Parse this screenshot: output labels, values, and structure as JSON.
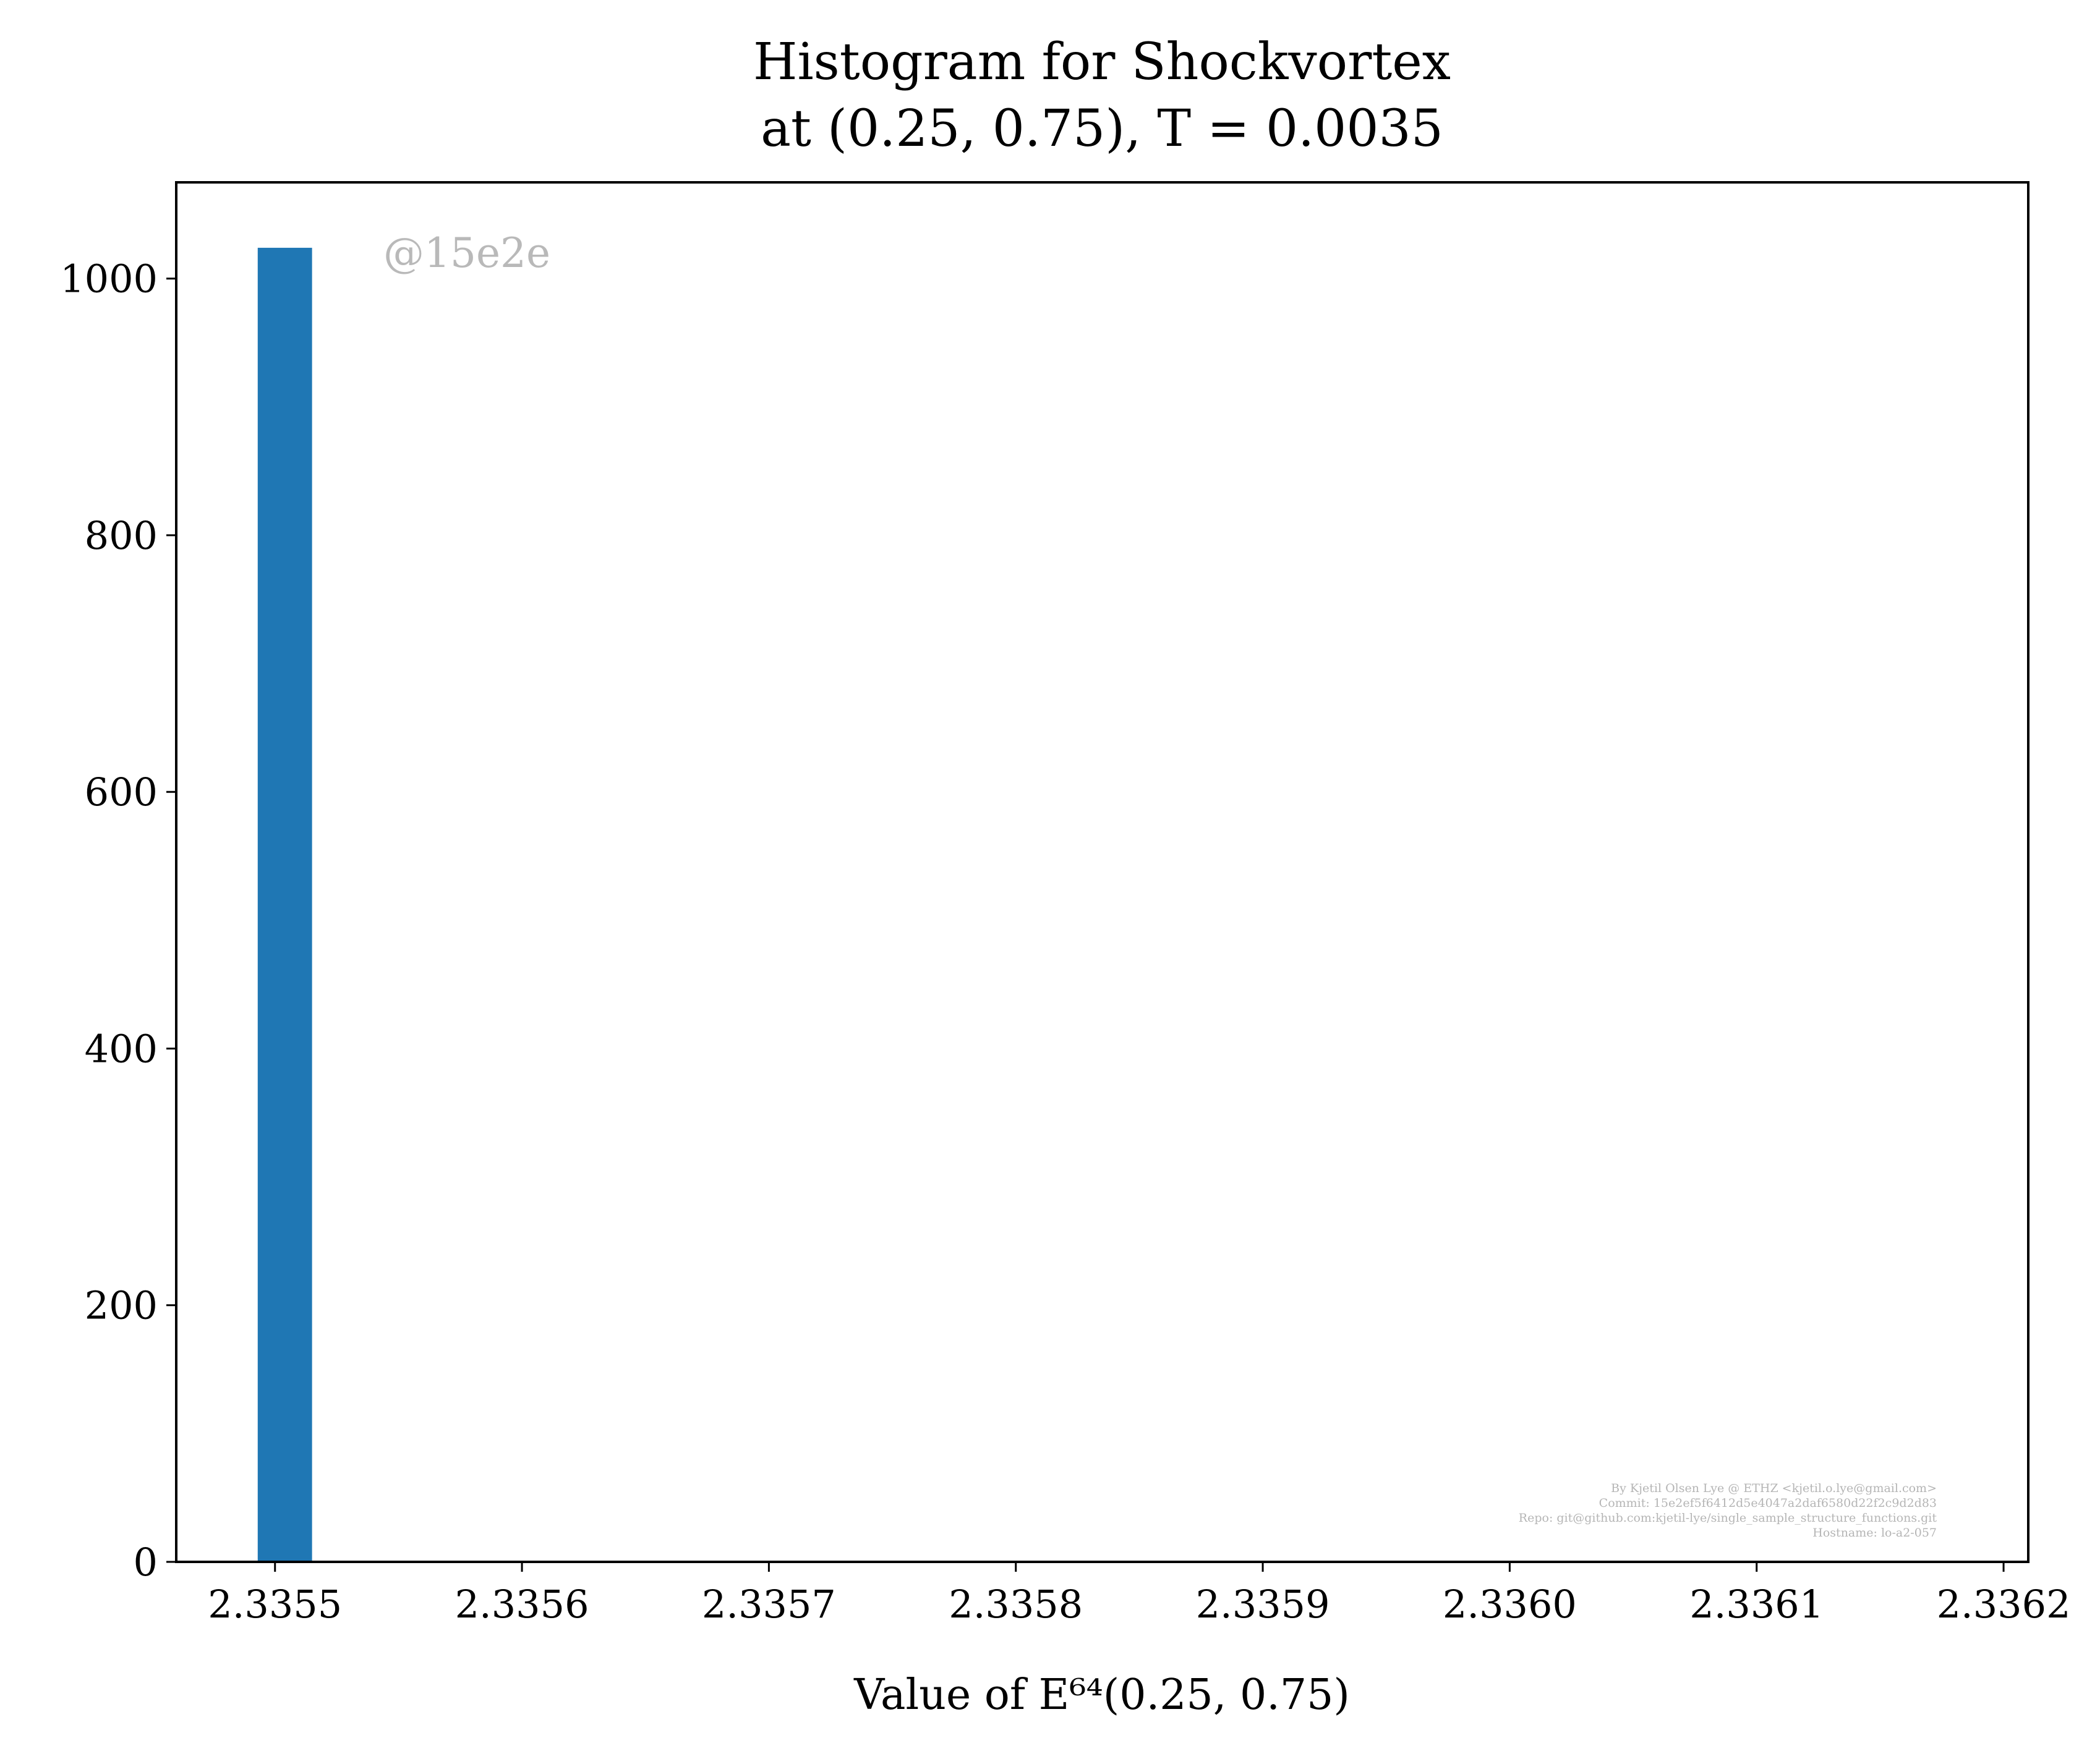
{
  "chart_data": {
    "type": "bar",
    "title_line1": "Histogram for Shockvortex",
    "title_line2": "at (0.25, 0.75), T = 0.0035",
    "xlabel": "Value of E⁶⁴(0.25, 0.75)",
    "ylabel": "",
    "xlim": [
      2.33546,
      2.33621
    ],
    "ylim": [
      0,
      1075
    ],
    "x_ticks": [
      2.3355,
      2.3356,
      2.3357,
      2.3358,
      2.3359,
      2.336,
      2.3361,
      2.3362
    ],
    "x_tick_labels": [
      "2.3355",
      "2.3356",
      "2.3357",
      "2.3358",
      "2.3359",
      "2.3360",
      "2.3361",
      "2.3362"
    ],
    "y_ticks": [
      0,
      200,
      400,
      600,
      800,
      1000
    ],
    "y_tick_labels": [
      "0",
      "200",
      "400",
      "600",
      "800",
      "1000"
    ],
    "bars": [
      {
        "x_start": 2.335493,
        "x_end": 2.335515,
        "value": 1024
      }
    ],
    "bar_color": "#1f77b4",
    "grid": false,
    "watermark": "@15e2e",
    "credits": [
      "By Kjetil Olsen Lye @ ETHZ <kjetil.o.lye@gmail.com>",
      "Commit: 15e2ef5f6412d5e4047a2daf6580d22f2c9d2d83",
      "Repo: git@github.com:kjetil-lye/single_sample_structure_functions.git",
      "Hostname: lo-a2-057"
    ]
  }
}
